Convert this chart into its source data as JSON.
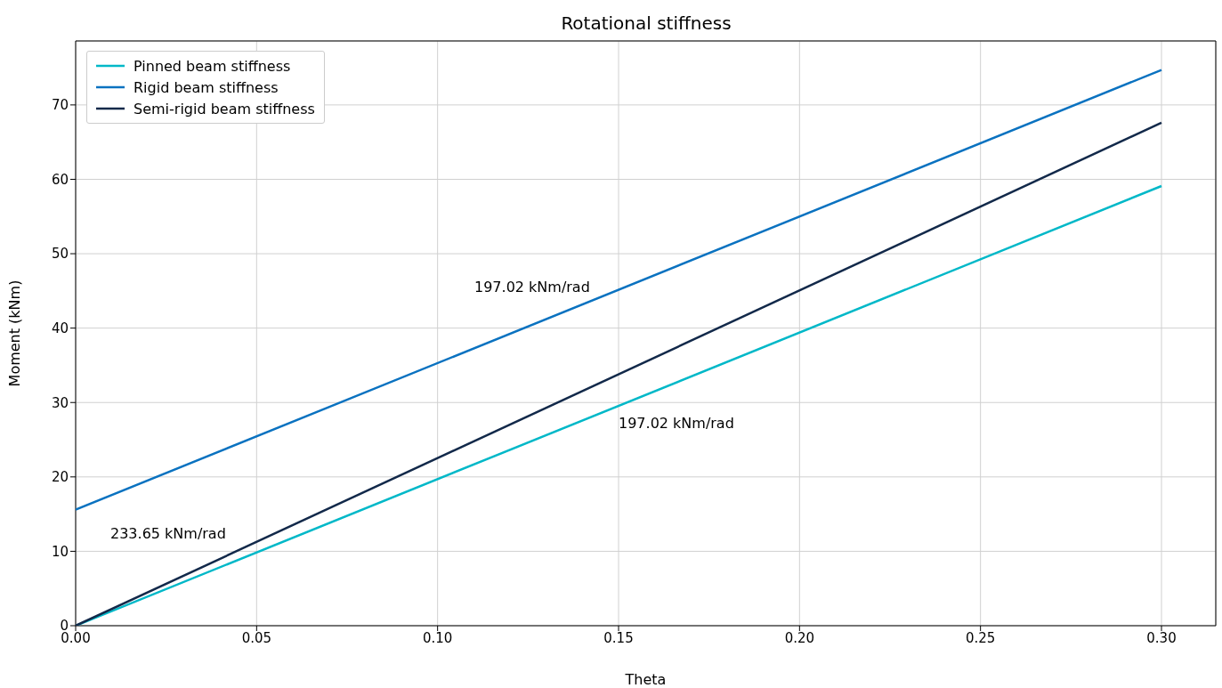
{
  "chart_data": {
    "type": "line",
    "title": "Rotational stiffness",
    "xlabel": "Theta",
    "ylabel": "Moment (kNm)",
    "xlim": [
      0,
      0.315
    ],
    "ylim": [
      0,
      78.6
    ],
    "xticks": [
      {
        "value": 0,
        "label": "0.00"
      },
      {
        "value": 0.05,
        "label": "0.05"
      },
      {
        "value": 0.1,
        "label": "0.10"
      },
      {
        "value": 0.15,
        "label": "0.15"
      },
      {
        "value": 0.2,
        "label": "0.20"
      },
      {
        "value": 0.25,
        "label": "0.25"
      },
      {
        "value": 0.3,
        "label": "0.30"
      }
    ],
    "yticks": [
      0,
      10,
      20,
      30,
      40,
      50,
      60,
      70
    ],
    "grid": true,
    "legend": "top left",
    "line_style": "solid",
    "x": [
      0,
      0.3
    ],
    "series": [
      {
        "name": "Pinned beam stiffness",
        "color": "#00b8c8",
        "values": [
          0,
          59.1
        ]
      },
      {
        "name": "Rigid beam stiffness",
        "color": "#0a72c0",
        "values": [
          15.6,
          74.7
        ]
      },
      {
        "name": "Semi-rigid beam stiffness",
        "color": "#12294a",
        "values": [
          0,
          67.6
        ]
      }
    ],
    "annotations": [
      "197.02 kNm/rad",
      "197.02 kNm/rad",
      "233.65 kNm/rad"
    ]
  }
}
